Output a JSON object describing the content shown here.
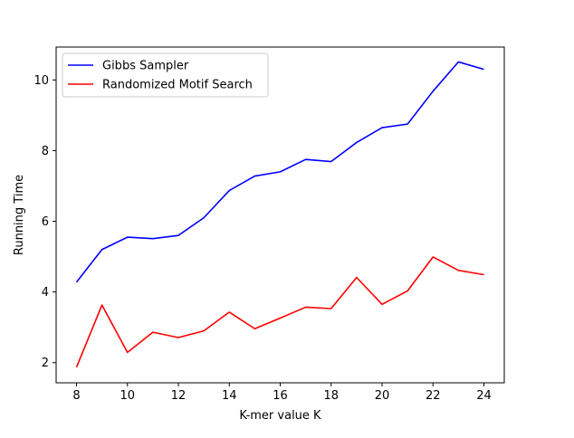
{
  "chart_data": {
    "type": "line",
    "title": "",
    "xlabel": "K-mer value K",
    "ylabel": "Running Time",
    "x": [
      8,
      9,
      10,
      11,
      12,
      13,
      14,
      15,
      16,
      17,
      18,
      19,
      20,
      21,
      22,
      23,
      24
    ],
    "xlim": [
      7.2,
      24.8
    ],
    "ylim": [
      1.43,
      10.93
    ],
    "xticks": [
      8,
      10,
      12,
      14,
      16,
      18,
      20,
      22,
      24
    ],
    "yticks": [
      2,
      4,
      6,
      8,
      10
    ],
    "grid": false,
    "legend_position": "top-left",
    "series": [
      {
        "name": "Gibbs Sampler",
        "color": "#0000ff",
        "values": [
          4.28,
          5.2,
          5.55,
          5.51,
          5.6,
          6.1,
          6.87,
          7.28,
          7.4,
          7.75,
          7.69,
          8.23,
          8.65,
          8.75,
          9.68,
          10.51,
          10.3
        ]
      },
      {
        "name": "Randomized Motif Search",
        "color": "#ff0000",
        "values": [
          1.87,
          3.63,
          2.29,
          2.86,
          2.71,
          2.9,
          3.43,
          2.96,
          3.26,
          3.57,
          3.53,
          4.41,
          3.65,
          4.03,
          4.99,
          4.61,
          4.49
        ]
      }
    ]
  }
}
